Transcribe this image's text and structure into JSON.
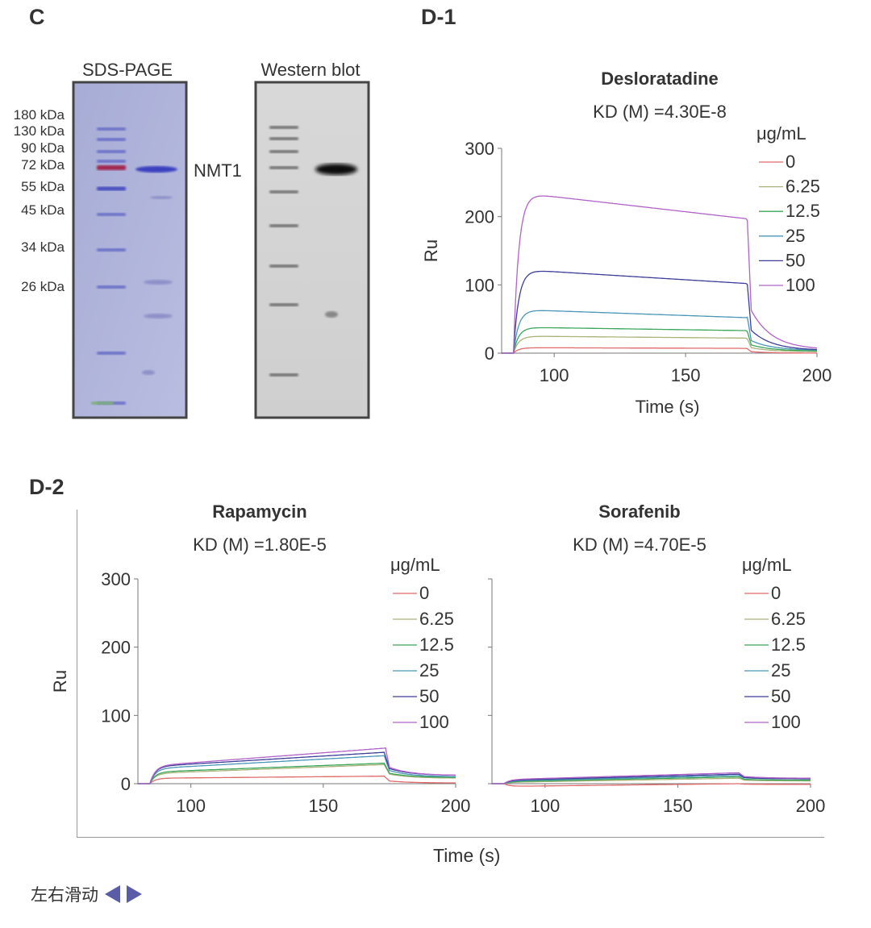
{
  "labels": {
    "c": "C",
    "d1": "D-1",
    "d2": "D-2"
  },
  "gel": {
    "sds_title": "SDS-PAGE",
    "wb_title": "Western blot",
    "band_label": "NMT1",
    "markers": [
      "180 kDa",
      "130 kDa",
      "90 kDa",
      "72 kDa",
      "55 kDa",
      "45 kDa",
      "34 kDa",
      "26 kDa"
    ]
  },
  "chart_data": [
    {
      "type": "line",
      "title": "Desloratadine",
      "subtitle": "KD (M) =4.30E-8",
      "xlabel": "Time (s)",
      "ylabel": "Ru",
      "xlim": [
        80,
        200
      ],
      "ylim": [
        0,
        300
      ],
      "xticks": [
        100,
        150,
        200
      ],
      "yticks": [
        0,
        100,
        200,
        300
      ],
      "legend_title": "μg/mL",
      "series": [
        {
          "name": "0",
          "color": "#e06a6a",
          "start": 8,
          "end": 7,
          "peak": 8,
          "tail": 0
        },
        {
          "name": "6.25",
          "color": "#a9b37a",
          "start": 25,
          "end": 22,
          "peak": 25,
          "tail": 2
        },
        {
          "name": "12.5",
          "color": "#3aa65a",
          "start": 38,
          "end": 33,
          "peak": 38,
          "tail": 3
        },
        {
          "name": "25",
          "color": "#4a96b8",
          "start": 64,
          "end": 52,
          "peak": 64,
          "tail": 4
        },
        {
          "name": "50",
          "color": "#3e3e9a",
          "start": 123,
          "end": 102,
          "peak": 123,
          "tail": 4
        },
        {
          "name": "100",
          "color": "#b063c8",
          "start": 236,
          "end": 197,
          "peak": 238,
          "tail": 5
        }
      ]
    },
    {
      "type": "line",
      "title": "Rapamycin",
      "subtitle": "KD (M) =1.80E-5",
      "xlabel": "",
      "ylabel": "Ru",
      "xlim": [
        80,
        200
      ],
      "ylim": [
        0,
        300
      ],
      "xticks": [
        100,
        150,
        200
      ],
      "yticks": [
        0,
        100,
        200,
        300
      ],
      "legend_title": "μg/mL",
      "series": [
        {
          "name": "0",
          "color": "#e06a6a",
          "start": 8,
          "end": 11,
          "peak": 11,
          "tail": 1
        },
        {
          "name": "6.25",
          "color": "#a9b37a",
          "start": 15,
          "end": 28,
          "peak": 28,
          "tail": 8
        },
        {
          "name": "12.5",
          "color": "#3aa65a",
          "start": 17,
          "end": 30,
          "peak": 30,
          "tail": 9
        },
        {
          "name": "25",
          "color": "#4a96b8",
          "start": 22,
          "end": 41,
          "peak": 41,
          "tail": 10
        },
        {
          "name": "50",
          "color": "#3e3e9a",
          "start": 25,
          "end": 46,
          "peak": 46,
          "tail": 12
        },
        {
          "name": "100",
          "color": "#b063c8",
          "start": 26,
          "end": 52,
          "peak": 62,
          "tail": 12
        }
      ]
    },
    {
      "type": "line",
      "title": "Sorafenib",
      "subtitle": "KD (M) =4.70E-5",
      "xlabel": "",
      "ylabel": "",
      "xlim": [
        80,
        200
      ],
      "ylim": [
        0,
        300
      ],
      "xticks": [
        100,
        150,
        200
      ],
      "yticks": [
        0,
        100,
        200,
        300
      ],
      "legend_title": "μg/mL",
      "series": [
        {
          "name": "0",
          "color": "#e06a6a",
          "start": -4,
          "end": 0,
          "peak": 0,
          "tail": -1
        },
        {
          "name": "6.25",
          "color": "#a9b37a",
          "start": 2,
          "end": 8,
          "peak": 8,
          "tail": 4
        },
        {
          "name": "12.5",
          "color": "#3aa65a",
          "start": 3,
          "end": 10,
          "peak": 10,
          "tail": 5
        },
        {
          "name": "25",
          "color": "#4a96b8",
          "start": 4,
          "end": 12,
          "peak": 12,
          "tail": 7
        },
        {
          "name": "50",
          "color": "#3e3e9a",
          "start": 5,
          "end": 14,
          "peak": 14,
          "tail": 7
        },
        {
          "name": "100",
          "color": "#b063c8",
          "start": 6,
          "end": 16,
          "peak": 16,
          "tail": 8
        }
      ]
    }
  ],
  "d2_xlabel": "Time (s)",
  "scroll_hint": "左右滑动"
}
